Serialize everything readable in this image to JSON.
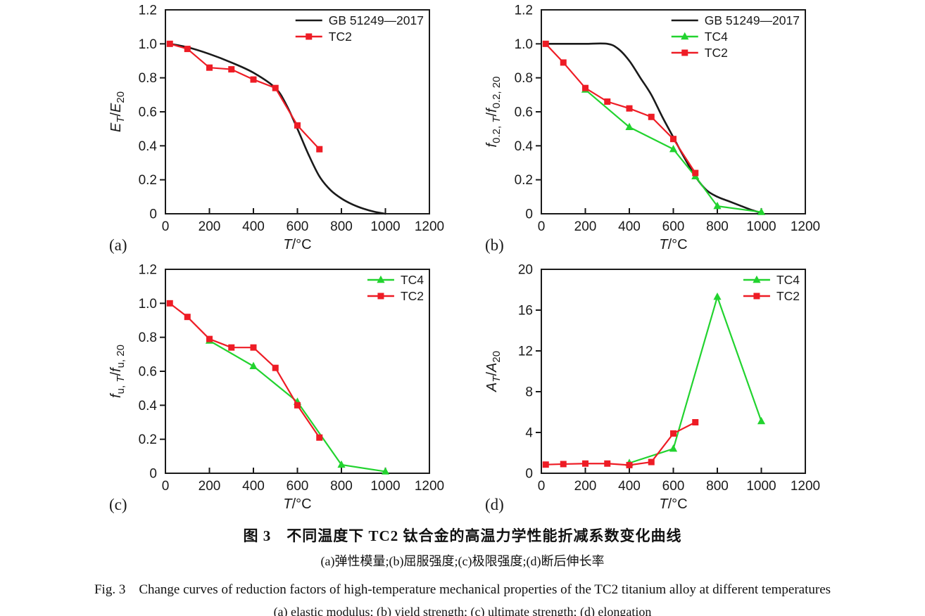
{
  "figure": {
    "caption_zh_title": "图 3　不同温度下 TC2 钛合金的高温力学性能折减系数变化曲线",
    "caption_zh_sub": "(a)弹性模量;(b)屈服强度;(c)极限强度;(d)断后伸长率",
    "caption_en_title": "Fig. 3　Change curves of reduction factors of high-temperature mechanical properties of the TC2 titanium alloy at different temperatures",
    "caption_en_sub": "(a) elastic modulus; (b) yield strength; (c) ultimate strength; (d) elongation"
  },
  "colors": {
    "axis": "#1a1a1a",
    "gb_standard": "#1a1a1a",
    "tc2": "#ee1c25",
    "tc4": "#22d32f"
  },
  "chart_data": [
    {
      "id": "a",
      "type": "line",
      "panel_label": "(a)",
      "xlabel": "*T*/°C",
      "ylabel": "*E*_*T*_/*E*_20_",
      "xlim": [
        0,
        1200
      ],
      "ylim": [
        0,
        1.2
      ],
      "xticks": [
        0,
        200,
        400,
        600,
        800,
        1000,
        1200
      ],
      "xtick_labels": [
        "0",
        "200",
        "400",
        "600",
        "800",
        "1000",
        "1200"
      ],
      "yticks": [
        0,
        0.2,
        0.4,
        0.6,
        0.8,
        1.0,
        1.2
      ],
      "ytick_labels": [
        "0",
        "0.2",
        "0.4",
        "0.6",
        "0.8",
        "1.0",
        "1.2"
      ],
      "grid": false,
      "legend_position": "top-right",
      "series": [
        {
          "name": "GB 51249—2017",
          "color": "#1a1a1a",
          "marker": "none",
          "smooth": true,
          "x": [
            20,
            100,
            200,
            300,
            400,
            500,
            550,
            600,
            650,
            700,
            750,
            800,
            850,
            900,
            950,
            1000
          ],
          "y": [
            1.0,
            0.98,
            0.94,
            0.89,
            0.83,
            0.74,
            0.64,
            0.5,
            0.35,
            0.22,
            0.14,
            0.09,
            0.055,
            0.03,
            0.012,
            0.0
          ]
        },
        {
          "name": "TC2",
          "color": "#ee1c25",
          "marker": "square",
          "smooth": false,
          "x": [
            20,
            100,
            200,
            300,
            400,
            500,
            600,
            700
          ],
          "y": [
            1.0,
            0.97,
            0.86,
            0.85,
            0.79,
            0.74,
            0.52,
            0.38
          ]
        }
      ]
    },
    {
      "id": "b",
      "type": "line",
      "panel_label": "(b)",
      "xlabel": "*T*/°C",
      "ylabel": "*f*_0.2, *T*_/*f*_0.2, 20_",
      "xlim": [
        0,
        1200
      ],
      "ylim": [
        0,
        1.2
      ],
      "xticks": [
        0,
        200,
        400,
        600,
        800,
        1000,
        1200
      ],
      "xtick_labels": [
        "0",
        "200",
        "400",
        "600",
        "800",
        "1000",
        "1200"
      ],
      "yticks": [
        0,
        0.2,
        0.4,
        0.6,
        0.8,
        1.0,
        1.2
      ],
      "ytick_labels": [
        "0",
        "0.2",
        "0.4",
        "0.6",
        "0.8",
        "1.0",
        "1.2"
      ],
      "grid": false,
      "legend_position": "top-right",
      "series": [
        {
          "name": "GB 51249—2017",
          "color": "#1a1a1a",
          "marker": "none",
          "smooth": true,
          "x": [
            20,
            100,
            200,
            300,
            350,
            400,
            450,
            500,
            550,
            600,
            650,
            700,
            750,
            800,
            850,
            900,
            950,
            1000
          ],
          "y": [
            1.0,
            1.0,
            1.0,
            1.0,
            0.97,
            0.9,
            0.8,
            0.7,
            0.57,
            0.45,
            0.33,
            0.22,
            0.14,
            0.1,
            0.075,
            0.05,
            0.025,
            0.005
          ]
        },
        {
          "name": "TC4",
          "color": "#22d32f",
          "marker": "triangle",
          "smooth": false,
          "x": [
            200,
            400,
            600,
            700,
            800,
            1000
          ],
          "y": [
            0.73,
            0.51,
            0.38,
            0.22,
            0.045,
            0.01
          ]
        },
        {
          "name": "TC2",
          "color": "#ee1c25",
          "marker": "square",
          "smooth": false,
          "x": [
            20,
            100,
            200,
            300,
            400,
            500,
            600,
            700
          ],
          "y": [
            1.0,
            0.89,
            0.74,
            0.66,
            0.62,
            0.57,
            0.44,
            0.24
          ]
        }
      ]
    },
    {
      "id": "c",
      "type": "line",
      "panel_label": "(c)",
      "xlabel": "*T*/°C",
      "ylabel": "*f*_u, *T*_/*f*_u, 20_",
      "xlim": [
        0,
        1200
      ],
      "ylim": [
        0,
        1.2
      ],
      "xticks": [
        0,
        200,
        400,
        600,
        800,
        1000,
        1200
      ],
      "xtick_labels": [
        "0",
        "200",
        "400",
        "600",
        "800",
        "1000",
        "1200"
      ],
      "yticks": [
        0,
        0.2,
        0.4,
        0.6,
        0.8,
        1.0,
        1.2
      ],
      "ytick_labels": [
        "0",
        "0.2",
        "0.4",
        "0.6",
        "0.8",
        "1.0",
        "1.2"
      ],
      "grid": false,
      "legend_position": "top-right",
      "series": [
        {
          "name": "TC4",
          "color": "#22d32f",
          "marker": "triangle",
          "smooth": false,
          "x": [
            200,
            400,
            600,
            800,
            1000
          ],
          "y": [
            0.78,
            0.63,
            0.42,
            0.05,
            0.01
          ]
        },
        {
          "name": "TC2",
          "color": "#ee1c25",
          "marker": "square",
          "smooth": false,
          "x": [
            20,
            100,
            200,
            300,
            400,
            500,
            600,
            700
          ],
          "y": [
            1.0,
            0.92,
            0.79,
            0.74,
            0.74,
            0.62,
            0.4,
            0.21
          ]
        }
      ]
    },
    {
      "id": "d",
      "type": "line",
      "panel_label": "(d)",
      "xlabel": "*T*/°C",
      "ylabel": "*A*_*T*_/*A*_20_",
      "xlim": [
        0,
        1200
      ],
      "ylim": [
        0,
        20
      ],
      "xticks": [
        0,
        200,
        400,
        600,
        800,
        1000,
        1200
      ],
      "xtick_labels": [
        "0",
        "200",
        "400",
        "600",
        "800",
        "1000",
        "1200"
      ],
      "yticks": [
        0,
        4,
        8,
        12,
        16,
        20
      ],
      "ytick_labels": [
        "0",
        "4",
        "8",
        "12",
        "16",
        "20"
      ],
      "grid": false,
      "legend_position": "top-right",
      "series": [
        {
          "name": "TC4",
          "color": "#22d32f",
          "marker": "triangle",
          "smooth": false,
          "x": [
            400,
            600,
            800,
            1000
          ],
          "y": [
            1.0,
            2.4,
            17.3,
            5.1
          ]
        },
        {
          "name": "TC2",
          "color": "#ee1c25",
          "marker": "square",
          "smooth": false,
          "x": [
            20,
            100,
            200,
            300,
            400,
            500,
            600,
            700
          ],
          "y": [
            0.85,
            0.9,
            0.95,
            0.95,
            0.8,
            1.1,
            3.9,
            5.0
          ]
        }
      ]
    }
  ]
}
